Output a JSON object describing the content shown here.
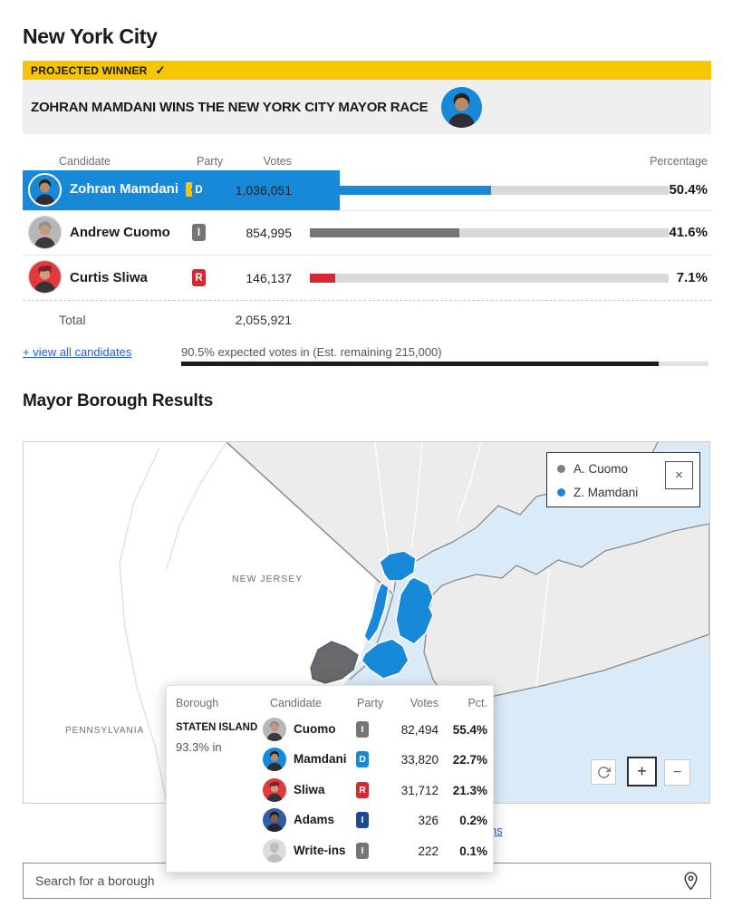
{
  "page": {
    "title": "New York City"
  },
  "banner": {
    "label": "PROJECTED WINNER",
    "check_icon": "✓"
  },
  "hero": {
    "headline": "ZOHRAN MAMDANI WINS THE NEW YORK CITY MAYOR RACE"
  },
  "colors": {
    "mamdani_blue": "#1789d8",
    "cuomo_gray": "#757575",
    "sliwa_red": "#d7282f",
    "adams_navy": "#1b4a8f",
    "winner_yellow": "#f7c600",
    "water_blue": "#daeaf7"
  },
  "results_table": {
    "headers": {
      "candidate": "Candidate",
      "party": "Party",
      "votes": "Votes",
      "percentage": "Percentage"
    },
    "rows": [
      {
        "name": "Zohran Mamdani",
        "party": "D",
        "votes": "1,036,051",
        "pct": "50.4%",
        "pct_value": 50.4,
        "winner": true
      },
      {
        "name": "Andrew Cuomo",
        "party": "I",
        "votes": "854,995",
        "pct": "41.6%",
        "pct_value": 41.6
      },
      {
        "name": "Curtis Sliwa",
        "party": "R",
        "votes": "146,137",
        "pct": "7.1%",
        "pct_value": 7.1
      }
    ],
    "total_label": "Total",
    "total_votes": "2,055,921",
    "view_all_label": "+ view all candidates",
    "expected_text": "90.5% expected votes in (Est. remaining 215,000)",
    "expected_pct_value": 90.5
  },
  "borough_section": {
    "title": "Mayor Borough Results",
    "legend": [
      {
        "label": "A. Cuomo",
        "color": "#808080"
      },
      {
        "label": "Z. Mamdani",
        "color": "#1789d8"
      }
    ],
    "close_icon": "×",
    "map_labels": {
      "new_jersey": "NEW JERSEY",
      "pennsylvania": "PENNSYLVANIA"
    },
    "controls": {
      "zoom_in": "+",
      "zoom_out": "−"
    },
    "view_all_label": "+ view all boroughs",
    "tooltip": {
      "headers": {
        "borough": "Borough",
        "candidate": "Candidate",
        "party": "Party",
        "votes": "Votes",
        "pct": "Pct."
      },
      "borough": "STATEN ISLAND",
      "reporting": "93.3% in",
      "rows": [
        {
          "name": "Cuomo",
          "party": "I",
          "votes": "82,494",
          "pct": "55.4%"
        },
        {
          "name": "Mamdani",
          "party": "D",
          "votes": "33,820",
          "pct": "22.7%"
        },
        {
          "name": "Sliwa",
          "party": "R",
          "votes": "31,712",
          "pct": "21.3%"
        },
        {
          "name": "Adams",
          "party": "I",
          "votes": "326",
          "pct": "0.2%"
        },
        {
          "name": "Write-ins",
          "party": "I",
          "votes": "222",
          "pct": "0.1%"
        }
      ]
    }
  },
  "search": {
    "placeholder": "Search for a borough"
  }
}
